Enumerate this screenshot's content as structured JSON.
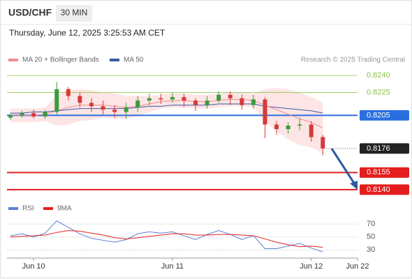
{
  "chart_data": {
    "type": "candlestick",
    "symbol": "USD/CHF",
    "interval": "30 MIN",
    "timestamp": "Thursday, June 12, 2025 3:25:53 AM CET",
    "credit": "Research © 2025 Trading Central",
    "legend": [
      {
        "name": "MA 20 + Bollinger Bands",
        "color": "#f08c8c"
      },
      {
        "name": "MA 50",
        "color": "#3a58a8"
      }
    ],
    "x": [
      -4,
      -2,
      0,
      2,
      4,
      6,
      8,
      10,
      12,
      14,
      16,
      18,
      20,
      22,
      24,
      26,
      28,
      30,
      32,
      34,
      36,
      38,
      40,
      42,
      44,
      46,
      48,
      50
    ],
    "xlim": [
      -4.6,
      56
    ],
    "xticks": [
      {
        "value": 0,
        "label": "Jun 10"
      },
      {
        "value": 24,
        "label": "Jun 11"
      },
      {
        "value": 48,
        "label": "Jun 12"
      },
      {
        "value": 56,
        "label": "Jun 22"
      }
    ],
    "ylim": [
      0.8132,
      0.8248
    ],
    "up_color": "#3d9a3d",
    "down_color": "#d63a3a",
    "open": [
      0.8203,
      0.8205,
      0.8207,
      0.8204,
      0.8208,
      0.8228,
      0.8222,
      0.8216,
      0.8213,
      0.821,
      0.8208,
      0.8212,
      0.8218,
      0.822,
      0.8219,
      0.8221,
      0.8218,
      0.8214,
      0.8218,
      0.8223,
      0.822,
      0.8214,
      0.8219,
      0.8197,
      0.8193,
      0.8196,
      0.8197,
      0.8186
    ],
    "high": [
      0.8207,
      0.8209,
      0.821,
      0.821,
      0.8234,
      0.823,
      0.8225,
      0.822,
      0.8218,
      0.8214,
      0.8216,
      0.8222,
      0.8224,
      0.8224,
      0.8225,
      0.8224,
      0.822,
      0.8222,
      0.8226,
      0.8226,
      0.8223,
      0.8223,
      0.8221,
      0.82,
      0.8199,
      0.8203,
      0.82,
      0.8188
    ],
    "low": [
      0.8201,
      0.8203,
      0.8202,
      0.8202,
      0.8206,
      0.8218,
      0.8212,
      0.8208,
      0.8206,
      0.8203,
      0.8202,
      0.8208,
      0.8214,
      0.8215,
      0.8216,
      0.8212,
      0.8209,
      0.8211,
      0.8216,
      0.8214,
      0.821,
      0.8211,
      0.8185,
      0.8188,
      0.8189,
      0.8192,
      0.8182,
      0.817
    ],
    "close": [
      0.8205,
      0.8207,
      0.8204,
      0.8208,
      0.8228,
      0.8222,
      0.8216,
      0.8213,
      0.821,
      0.8208,
      0.8212,
      0.8218,
      0.822,
      0.8219,
      0.8221,
      0.8218,
      0.8214,
      0.8218,
      0.8223,
      0.822,
      0.8214,
      0.8219,
      0.8197,
      0.8193,
      0.8196,
      0.8197,
      0.8186,
      0.8176
    ],
    "ma20": [
      0.8205,
      0.8205,
      0.8205,
      0.8206,
      0.8209,
      0.8212,
      0.8214,
      0.8214,
      0.8214,
      0.8213,
      0.8212,
      0.8213,
      0.8215,
      0.8217,
      0.8218,
      0.8218,
      0.8217,
      0.8217,
      0.8218,
      0.8219,
      0.8219,
      0.8218,
      0.8214,
      0.821,
      0.8206,
      0.8202,
      0.8199,
      0.8194
    ],
    "ma50": [
      0.8207,
      0.8207,
      0.8208,
      0.8208,
      0.8209,
      0.821,
      0.8211,
      0.8211,
      0.8211,
      0.8211,
      0.8211,
      0.8212,
      0.8213,
      0.8213,
      0.8214,
      0.8214,
      0.8214,
      0.8214,
      0.8215,
      0.8215,
      0.8215,
      0.8215,
      0.8213,
      0.8212,
      0.8211,
      0.821,
      0.8209,
      0.8207
    ],
    "bb_upper": [
      0.8211,
      0.8211,
      0.8211,
      0.8212,
      0.8222,
      0.8227,
      0.8228,
      0.8227,
      0.8225,
      0.8224,
      0.8222,
      0.8222,
      0.8222,
      0.8223,
      0.8224,
      0.8224,
      0.8223,
      0.8223,
      0.8224,
      0.8225,
      0.8225,
      0.8224,
      0.8228,
      0.8229,
      0.8228,
      0.8225,
      0.8221,
      0.8216
    ],
    "bb_lower": [
      0.8199,
      0.8199,
      0.8199,
      0.82,
      0.8196,
      0.8197,
      0.82,
      0.8201,
      0.8203,
      0.8202,
      0.8202,
      0.8204,
      0.8208,
      0.8211,
      0.8212,
      0.8212,
      0.8211,
      0.8211,
      0.8212,
      0.8213,
      0.8213,
      0.8212,
      0.82,
      0.8191,
      0.8184,
      0.8179,
      0.8177,
      0.8172
    ],
    "levels": [
      {
        "value": 0.824,
        "label": "0.8240",
        "color": "#8bc34a",
        "style": "text"
      },
      {
        "value": 0.8225,
        "color": "#8bc34a",
        "style": "text"
      },
      {
        "value": 0.8205,
        "color": "#2a6fe0",
        "style": "box"
      },
      {
        "value": 0.8155,
        "color": "#e41e1e",
        "style": "box"
      },
      {
        "value": 0.814,
        "label": "0.8140",
        "color": "#e41e1e",
        "style": "box"
      }
    ],
    "last": {
      "value": 0.8176,
      "color": "#222222"
    },
    "rsi": {
      "legend": [
        {
          "name": "RSI",
          "color": "#5b7fd6"
        },
        {
          "name": "9MA",
          "color": "#e41e1e"
        }
      ],
      "ylim": [
        20,
        80
      ],
      "yticks": [
        70,
        50,
        30
      ],
      "values": [
        52,
        55,
        50,
        56,
        75,
        65,
        55,
        48,
        45,
        42,
        46,
        55,
        58,
        56,
        58,
        52,
        46,
        54,
        60,
        54,
        46,
        52,
        32,
        32,
        36,
        40,
        33,
        27
      ],
      "ma": [
        50,
        51,
        52,
        53,
        57,
        60,
        59,
        56,
        53,
        49,
        47,
        49,
        51,
        53,
        55,
        55,
        53,
        53,
        54,
        54,
        53,
        52,
        47,
        42,
        38,
        35,
        36,
        34
      ]
    }
  }
}
